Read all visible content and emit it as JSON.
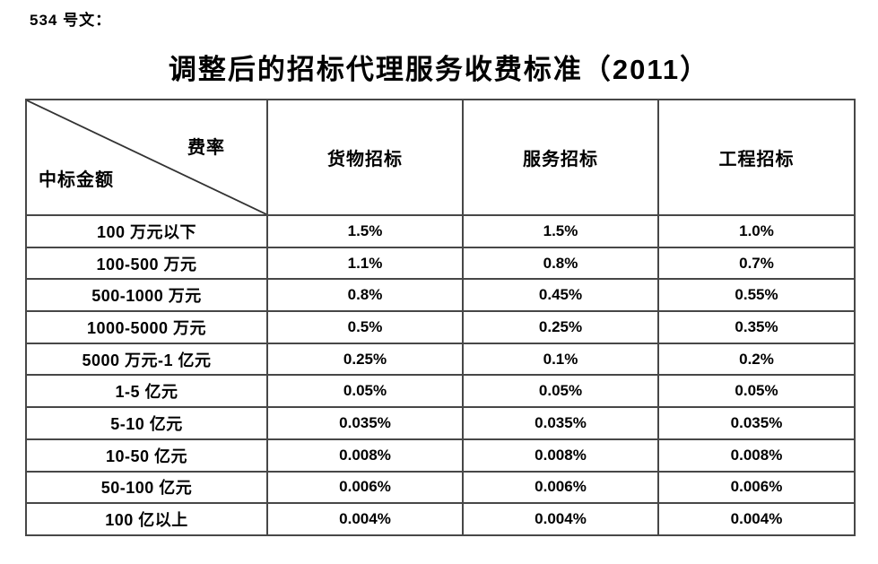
{
  "doc": {
    "doc_ref": "534 号文：",
    "title": "调整后的招标代理服务收费标准（2011）"
  },
  "table": {
    "corner": {
      "top_right": "费率",
      "bottom_left": "中标金额"
    },
    "columns": [
      "货物招标",
      "服务招标",
      "工程招标"
    ],
    "rows": [
      {
        "label": "100 万元以下",
        "values": [
          "1.5%",
          "1.5%",
          "1.0%"
        ]
      },
      {
        "label": "100-500 万元",
        "values": [
          "1.1%",
          "0.8%",
          "0.7%"
        ]
      },
      {
        "label": "500-1000 万元",
        "values": [
          "0.8%",
          "0.45%",
          "0.55%"
        ]
      },
      {
        "label": "1000-5000 万元",
        "values": [
          "0.5%",
          "0.25%",
          "0.35%"
        ]
      },
      {
        "label": "5000 万元-1 亿元",
        "values": [
          "0.25%",
          "0.1%",
          "0.2%"
        ]
      },
      {
        "label": "1-5 亿元",
        "values": [
          "0.05%",
          "0.05%",
          "0.05%"
        ]
      },
      {
        "label": "5-10 亿元",
        "values": [
          "0.035%",
          "0.035%",
          "0.035%"
        ]
      },
      {
        "label": "10-50 亿元",
        "values": [
          "0.008%",
          "0.008%",
          "0.008%"
        ]
      },
      {
        "label": "50-100 亿元",
        "values": [
          "0.006%",
          "0.006%",
          "0.006%"
        ]
      },
      {
        "label": "100 亿以上",
        "values": [
          "0.004%",
          "0.004%",
          "0.004%"
        ]
      }
    ]
  },
  "colors": {
    "text": "#000000",
    "border_inner": "#474747",
    "border_outer": "#6b6b6b",
    "background": "#ffffff"
  }
}
